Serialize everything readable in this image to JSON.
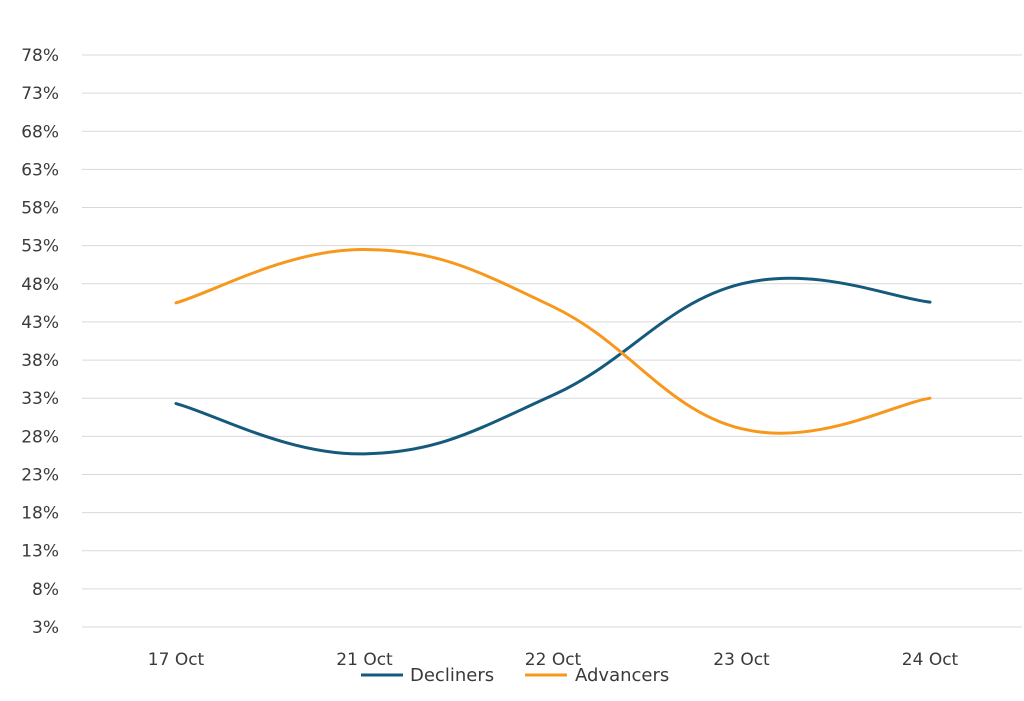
{
  "chart_data": {
    "type": "line",
    "categories": [
      "17 Oct",
      "21 Oct",
      "22 Oct",
      "23 Oct",
      "24 Oct"
    ],
    "series": [
      {
        "name": "Decliners",
        "values": [
          32.3,
          25.7,
          33.4,
          48.0,
          45.6
        ],
        "color": "#155a7c"
      },
      {
        "name": "Advancers",
        "values": [
          45.5,
          52.5,
          45.0,
          29.0,
          33.0
        ],
        "color": "#f7981d"
      }
    ],
    "y_ticks": [
      "78%",
      "73%",
      "68%",
      "63%",
      "58%",
      "53%",
      "48%",
      "43%",
      "38%",
      "33%",
      "28%",
      "23%",
      "18%",
      "13%",
      "8%",
      "3%"
    ],
    "ylim": [
      3,
      78
    ],
    "smooth": true,
    "grid": true,
    "legend_position": "bottom-center",
    "title": "",
    "xlabel": "",
    "ylabel": ""
  }
}
